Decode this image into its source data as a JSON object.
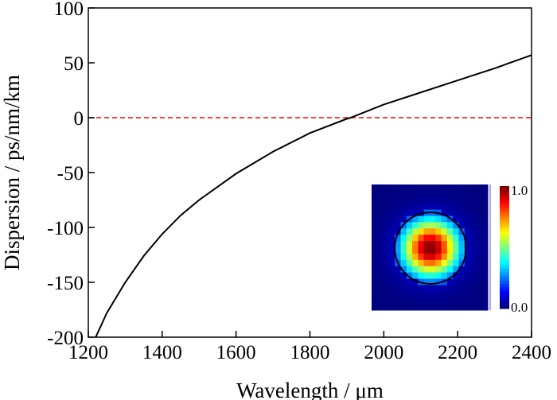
{
  "chart_data": {
    "type": "line",
    "title": "",
    "xlabel": "Wavelength / μm",
    "ylabel": "Dispersion / ps/nm/km",
    "xlim": [
      1200,
      2400
    ],
    "ylim": [
      -200,
      100
    ],
    "xticks": [
      "1200",
      "1400",
      "1600",
      "1800",
      "2000",
      "2200",
      "2400"
    ],
    "yticks": [
      "100",
      "50",
      "0",
      "-50",
      "-100",
      "-150",
      "-200"
    ],
    "grid": false,
    "series": [
      {
        "color": "#000000",
        "x": [
          1220,
          1250,
          1300,
          1350,
          1400,
          1450,
          1500,
          1600,
          1700,
          1800,
          1900,
          1910,
          2000,
          2100,
          2200,
          2300,
          2400
        ],
        "y": [
          -200,
          -178,
          -150,
          -126,
          -106,
          -89,
          -75,
          -51,
          -31,
          -14,
          -1,
          0,
          12,
          23,
          34,
          45,
          57
        ]
      }
    ],
    "reference_line": {
      "y": 0,
      "color": "#ff0000",
      "style": "dashed"
    },
    "inset": {
      "type": "heatmap",
      "description_colormap": "jet",
      "colorbar_labels": [
        "1.0",
        "0.0"
      ],
      "colorbar_range": [
        0.0,
        1.0
      ]
    }
  }
}
